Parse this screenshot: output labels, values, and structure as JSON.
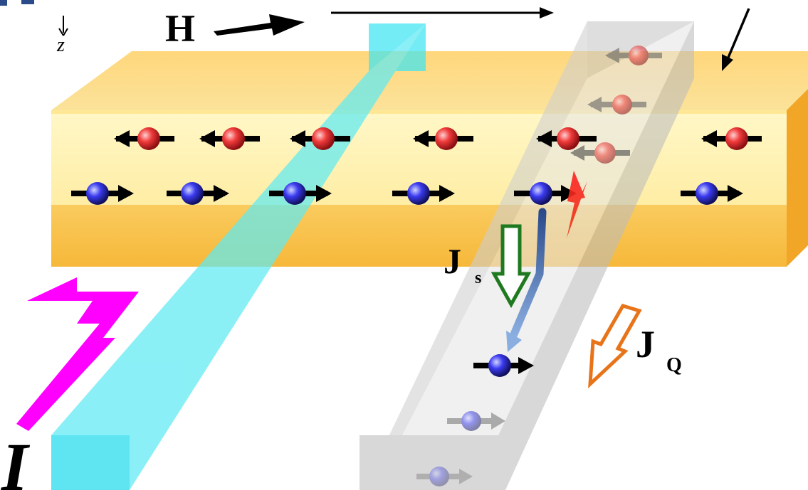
{
  "labels": {
    "z_axis": "z",
    "field": "H",
    "spin_current_main": "J",
    "spin_current_sub": "s",
    "heat_current_main": "J",
    "heat_current_sub": "Q",
    "charge_current": "I"
  },
  "colors": {
    "magnet_bar": "#f7c13a",
    "magnet_core": "#fff5b0",
    "cyan_electrode": "#4ee6f2",
    "gray_electrode": "#b4b4b4",
    "up_spin_ball": "#e8202a",
    "down_spin_ball": "#2a2ad8",
    "spin_current_arrow": "#1f7a1f",
    "heat_current_arrow": "#e8741a",
    "charge_current_arrow": "#ff00ff",
    "flow_arrow": "#3a6ab0"
  },
  "spins": {
    "upper_row_count": 6,
    "lower_row_count": 6,
    "upper_row_direction": "left",
    "lower_row_direction": "right"
  }
}
